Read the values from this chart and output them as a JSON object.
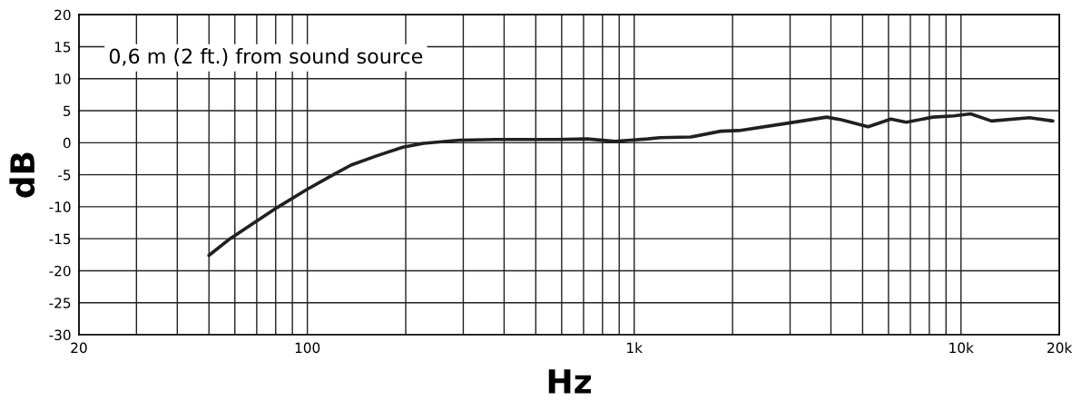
{
  "chart_data": {
    "type": "line",
    "xlabel": "Hz",
    "ylabel": "dB",
    "log": "x",
    "grid": true,
    "marker": "none",
    "line_style": "solid",
    "annotations": [
      "0,6 m (2 ft.) from sound source"
    ],
    "xlim": [
      20,
      20000
    ],
    "ylim": [
      -30,
      20
    ],
    "xticks": [
      20,
      {
        "value": 30,
        "label": null
      },
      {
        "value": 40,
        "label": null
      },
      {
        "value": 50,
        "label": null
      },
      {
        "value": 60,
        "label": null
      },
      {
        "value": 70,
        "label": null
      },
      {
        "value": 80,
        "label": null
      },
      {
        "value": 90,
        "label": null
      },
      100,
      {
        "value": 200,
        "label": null
      },
      {
        "value": 300,
        "label": null
      },
      {
        "value": 400,
        "label": null
      },
      {
        "value": 500,
        "label": null
      },
      {
        "value": 600,
        "label": null
      },
      {
        "value": 700,
        "label": null
      },
      {
        "value": 800,
        "label": null
      },
      {
        "value": 900,
        "label": null
      },
      {
        "value": 1000,
        "label": "1k"
      },
      {
        "value": 2000,
        "label": null
      },
      {
        "value": 3000,
        "label": null
      },
      {
        "value": 4000,
        "label": null
      },
      {
        "value": 5000,
        "label": null
      },
      {
        "value": 6000,
        "label": null
      },
      {
        "value": 7000,
        "label": null
      },
      {
        "value": 8000,
        "label": null
      },
      {
        "value": 9000,
        "label": null
      },
      {
        "value": 10000,
        "label": "10k"
      },
      {
        "value": 20000,
        "label": "20k"
      }
    ],
    "yticks": [
      -30,
      -25,
      -20,
      -15,
      -10,
      -5,
      0,
      5,
      10,
      15,
      20
    ],
    "series": [
      {
        "color": "#231f20",
        "x": [
          50,
          58,
          81,
          99,
          120,
          136,
          162,
          196,
          227,
          293,
          379,
          580,
          718,
          873,
          974,
          1100,
          1200,
          1490,
          1840,
          2090,
          2820,
          3880,
          4300,
          5200,
          6100,
          6800,
          8200,
          9500,
          10700,
          12400,
          16200,
          19100
        ],
        "values": [
          -17.6,
          -15.0,
          -10.1,
          -7.4,
          -5.0,
          -3.5,
          -2.1,
          -0.7,
          -0.1,
          0.4,
          0.5,
          0.5,
          0.6,
          0.2,
          0.4,
          0.6,
          0.8,
          0.9,
          1.8,
          1.9,
          2.9,
          4.0,
          3.6,
          2.5,
          3.7,
          3.2,
          4.0,
          4.2,
          4.5,
          3.4,
          3.9,
          3.4
        ]
      }
    ]
  }
}
